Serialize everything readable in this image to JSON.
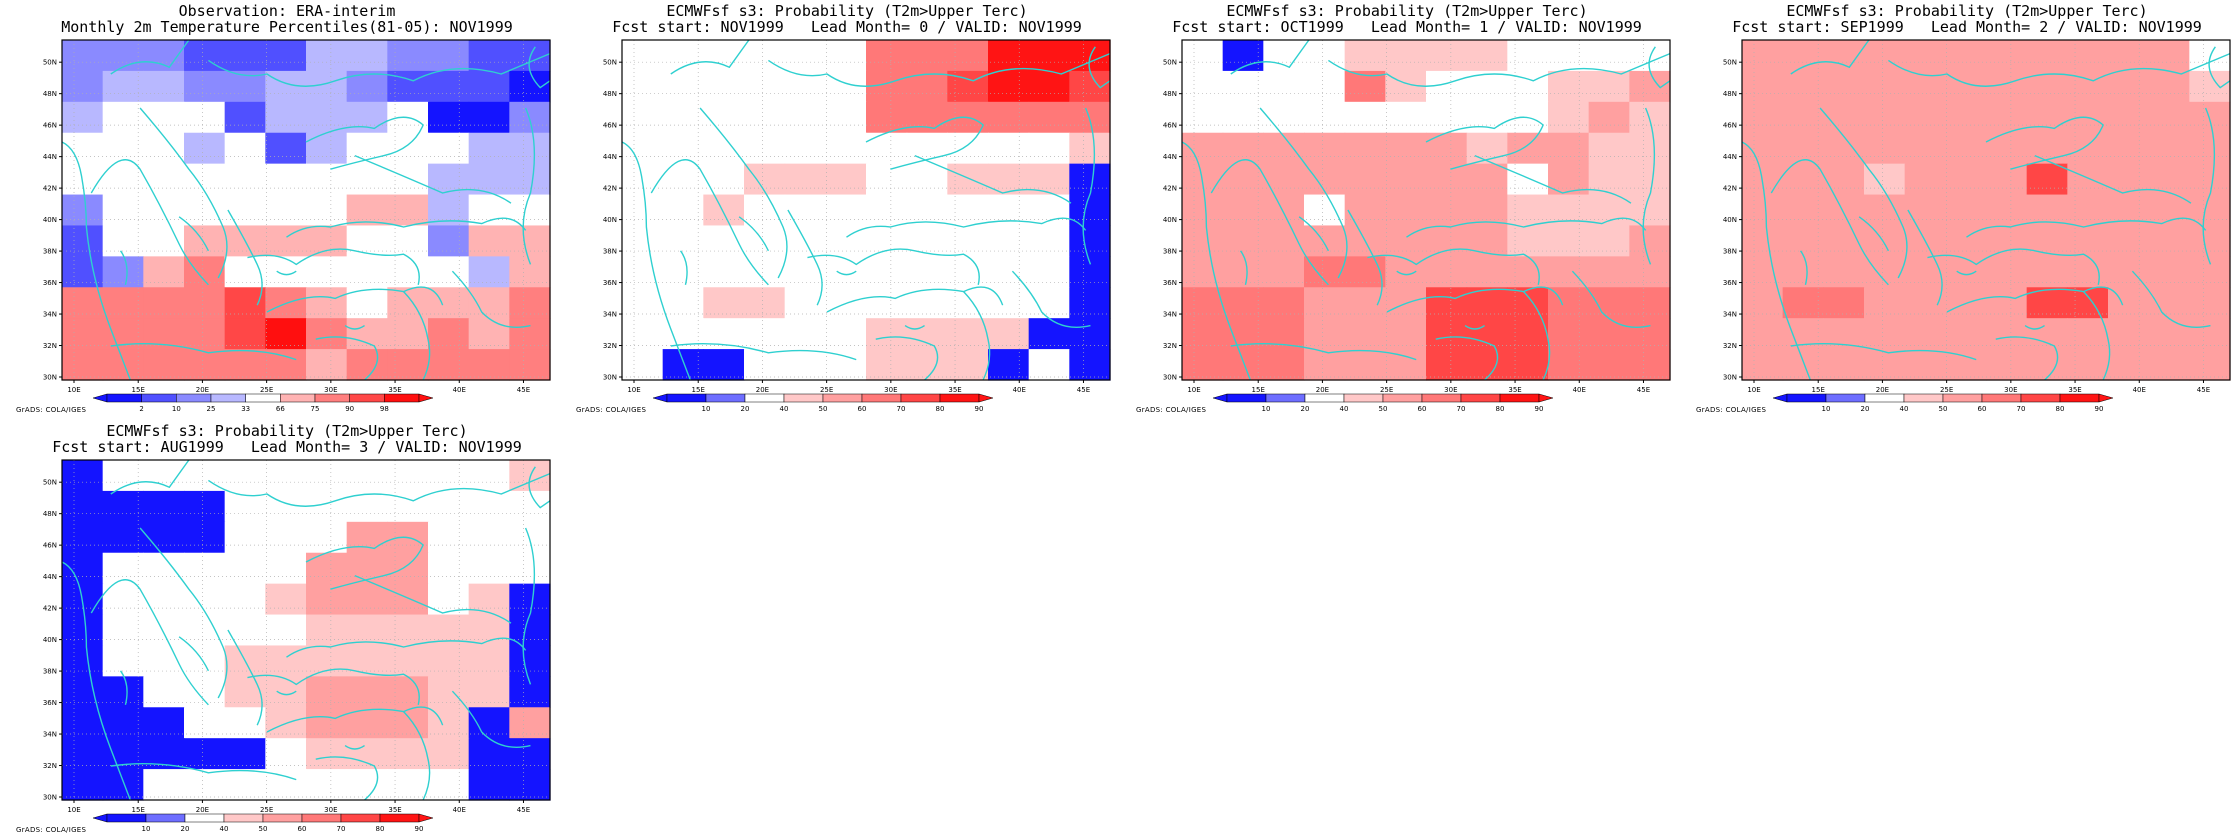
{
  "credit": "GrADS: COLA/IGES",
  "xticks": [
    "10E",
    "15E",
    "20E",
    "25E",
    "30E",
    "35E",
    "40E",
    "45E"
  ],
  "yticks": [
    "30N",
    "32N",
    "34N",
    "36N",
    "38N",
    "40N",
    "42N",
    "44N",
    "46N",
    "48N",
    "50N"
  ],
  "colors": {
    "coast": "#2fd0d0",
    "grid": "#b0b0b0",
    "obs_classes": [
      "#1414ff",
      "#5050ff",
      "#8a8aff",
      "#b8b8ff",
      "#ffffff",
      "#ffb3b3",
      "#ff7f7f",
      "#ff4747",
      "#ff0f0f"
    ],
    "prob_classes": [
      "#1414ff",
      "#6e6eff",
      "#ffffff",
      "#ffc8c8",
      "#ffa0a0",
      "#ff7878",
      "#ff4646",
      "#ff1414"
    ]
  },
  "panels": [
    {
      "title1": "Observation: ERA-interim",
      "title2": "Monthly 2m Temperature Percentiles(81-05): NOV1999",
      "legend_type": "obs",
      "legend_labels": [
        "2",
        "10",
        "25",
        "33",
        "66",
        "75",
        "90",
        "98"
      ],
      "grid": [
        "222111332211",
        "233223321110",
        "344413334002",
        "444341344433",
        "444444444333",
        "244444455344",
        "144555544255",
        "125644444435",
        "666676545556",
        "666678655656",
        "666666566666"
      ]
    },
    {
      "title1": "ECMWFsf s3: Probability (T2m>Upper Terc)",
      "title2": "Fcst start: NOV1999   Lead Month= 0 / VALID: NOV1999",
      "legend_type": "prob",
      "legend_labels": [
        "10",
        "20",
        "40",
        "50",
        "60",
        "70",
        "80",
        "90"
      ],
      "grid": [
        "222222555777",
        "222222556776",
        "222222555555",
        "222222222223",
        "222333223330",
        "223222222220",
        "222222222220",
        "222222222220",
        "223322222220",
        "222222333300",
        "200222333020"
      ]
    },
    {
      "title1": "ECMWFsf s3: Probability (T2m>Upper Terc)",
      "title2": "Fcst start: OCT1999   Lead Month= 1 / VALID: NOV1999",
      "legend_type": "prob",
      "legend_labels": [
        "10",
        "20",
        "40",
        "50",
        "60",
        "70",
        "80",
        "90"
      ],
      "grid": [
        "202233332222",
        "222253222334",
        "222222222343",
        "444444434433",
        "444444442433",
        "444244443333",
        "444444443334",
        "444554444444",
        "555444666555",
        "555444666555",
        "555444666555"
      ]
    },
    {
      "title1": "ECMWFsf s3: Probability (T2m>Upper Terc)",
      "title2": "Fcst start: SEP1999   Lead Month= 2 / VALID: NOV1999",
      "legend_type": "prob",
      "legend_labels": [
        "10",
        "20",
        "40",
        "50",
        "60",
        "70",
        "80",
        "90"
      ],
      "grid": [
        "444444444442",
        "444444444443",
        "444444444444",
        "444444444444",
        "444344464444",
        "444444444444",
        "444444444444",
        "444444444444",
        "455444466444",
        "444444444444",
        "444444444444"
      ]
    },
    {
      "title1": "ECMWFsf s3: Probability (T2m>Upper Terc)",
      "title2": "Fcst start: AUG1999   Lead Month= 3 / VALID: NOV1999",
      "legend_type": "prob",
      "legend_labels": [
        "10",
        "20",
        "40",
        "50",
        "60",
        "70",
        "80",
        "90"
      ],
      "grid": [
        "022222222223",
        "000022222222",
        "000022244222",
        "022222444222",
        "022223444230",
        "022222333330",
        "022233333330",
        "002233444330",
        "000223444304",
        "000002333300",
        "002222222200"
      ]
    }
  ],
  "coastlines": [
    "M0,0.30 Q0.03,0.32 0.04,0.40 T0.05,0.55 Q0.06,0.70 0.10,0.85 L0.14,1",
    "M0.06,0.45 Q0.12,0.30 0.16,0.38 Q0.20,0.48 0.24,0.60 Q0.26,0.66 0.30,0.72",
    "M0.16,0.20 Q0.22,0.30 0.26,0.38 Q0.30,0.45 0.33,0.55 Q0.35,0.62 0.32,0.70",
    "M0.24,0.52 Q0.28,0.56 0.30,0.62",
    "M0.34,0.50 Q0.38,0.60 0.40,0.66 Q0.42,0.72 0.40,0.78",
    "M0.38,0.64 Q0.44,0.62 0.48,0.66 Q0.54,0.60 0.60,0.62 Q0.66,0.64 0.70,0.63 Q0.74,0.66 0.73,0.72",
    "M0.46,0.58 Q0.50,0.54 0.55,0.55 Q0.62,0.52 0.70,0.55 Q0.78,0.52 0.86,0.54 Q0.92,0.50 0.95,0.56",
    "M0.50,0.30 Q0.58,0.24 0.64,0.26 Q0.70,0.20 0.74,0.25 Q0.72,0.32 0.66,0.34 Q0.60,0.36 0.55,0.38",
    "M0.60,0.34 Q0.70,0.40 0.78,0.45 Q0.86,0.42 0.92,0.48",
    "M0.95,0.20 Q0.98,0.30 0.96,0.45 Q0.93,0.55 0.96,0.66",
    "M0.42,0.80 Q0.50,0.74 0.56,0.76 Q0.62,0.72 0.70,0.74 Q0.76,0.70 0.78,0.78",
    "M0.70,0.74 Q0.74,0.80 0.75,0.88 Q0.76,0.94 0.74,1",
    "M0.10,0.90 Q0.20,0.88 0.30,0.92 Q0.40,0.90 0.48,0.94",
    "M0.52,0.88 Q0.58,0.86 0.64,0.90 Q0.66,0.95 0.62,1",
    "M0.80,0.68 Q0.84,0.74 0.86,0.80 Q0.90,0.86 0.96,0.84",
    "M0.30,0.06 Q0.36,0.12 0.42,0.10 Q0.48,0.16 0.56,0.12 Q0.64,0.08 0.72,0.12 Q0.80,0.06 0.90,0.10 L1,0.04",
    "M0.10,0.10 Q0.16,0.04 0.22,0.08 L0.26,0",
    "M0.97,0.02 Q0.94,0.08 0.98,0.14 L1,0.12",
    "M0.12,0.62 Q0.14,0.66 0.13,0.72",
    "M0.58,0.84 Q0.60,0.86 0.62,0.84",
    "M0.44,0.68 Q0.46,0.70 0.48,0.68"
  ]
}
